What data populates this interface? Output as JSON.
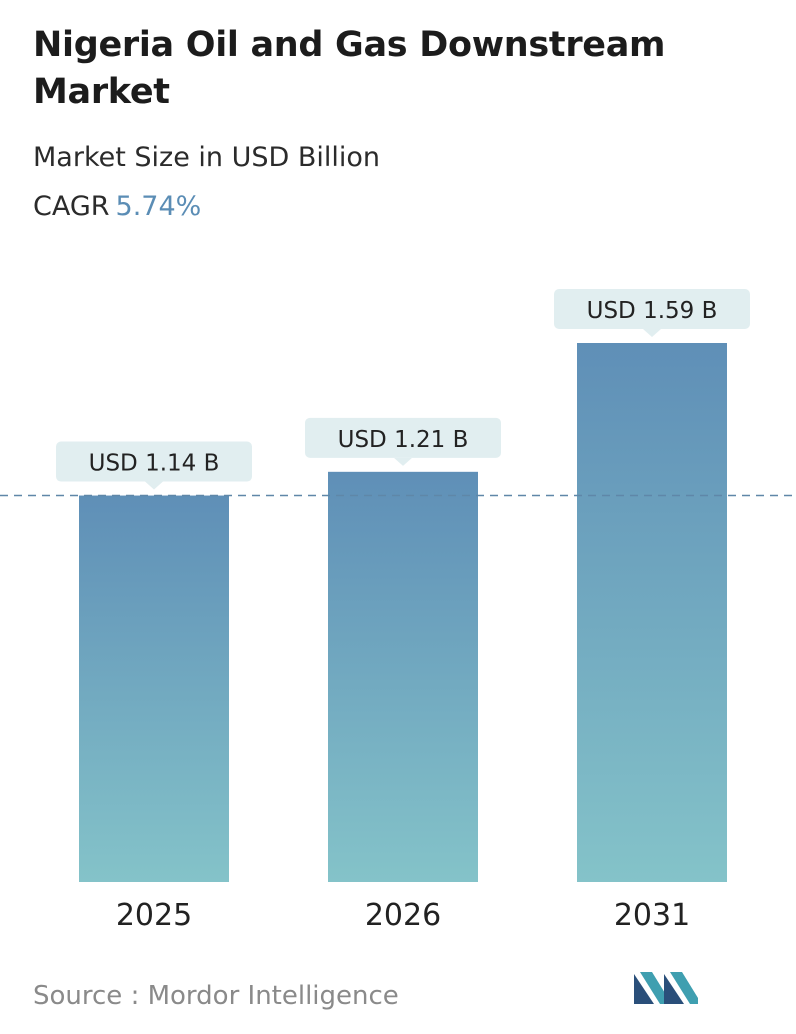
{
  "header": {
    "title": "Nigeria Oil and Gas Downstream Market",
    "subtitle": "Market Size in USD Billion",
    "cagr_label": "CAGR",
    "cagr_value": "5.74%"
  },
  "chart_data": {
    "type": "bar",
    "categories": [
      "2025",
      "2026",
      "2031"
    ],
    "values": [
      1.14,
      1.21,
      1.59
    ],
    "data_labels": [
      "USD 1.14 B",
      "USD 1.21 B",
      "USD 1.59 B"
    ],
    "title": "Nigeria Oil and Gas Downstream Market",
    "ylabel": "Market Size in USD Billion",
    "reference_line_value": 1.14,
    "grid": false,
    "colors": {
      "bar_top": "#5f8fb7",
      "bar_bottom": "#84c3c9",
      "label_bg": "#e1eef0",
      "ref_line": "#5f87a8"
    }
  },
  "footer": {
    "source_text": "Source :  Mordor Intelligence",
    "logo_icon": "mordor-intelligence-logo-icon"
  }
}
